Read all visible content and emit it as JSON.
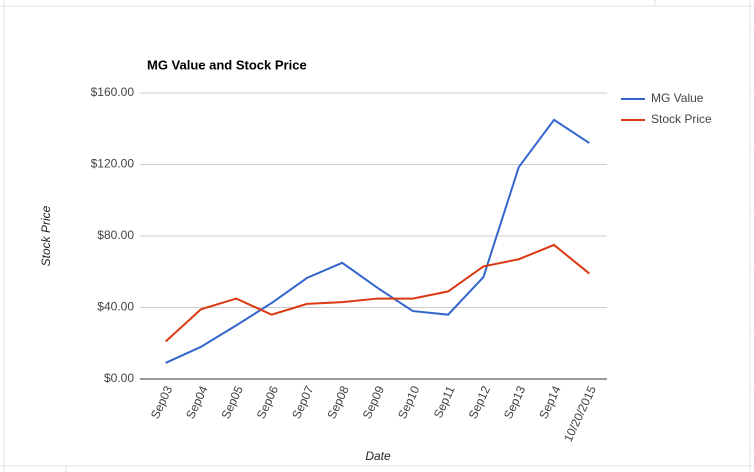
{
  "chart_data": {
    "type": "line",
    "title": "MG Value and Stock Price",
    "x_label": "Date",
    "y_label": "Stock Price",
    "categories": [
      "Sep03",
      "Sep04",
      "Sep05",
      "Sep06",
      "Sep07",
      "Sep08",
      "Sep09",
      "Sep10",
      "Sep11",
      "Sep12",
      "Sep13",
      "Sep14",
      "10/20/2015"
    ],
    "series": [
      {
        "name": "MG Value",
        "color": "#3366cc",
        "values": [
          9,
          18,
          30,
          42.5,
          56.5,
          65,
          51,
          38,
          36,
          57,
          118.5,
          145,
          132
        ]
      },
      {
        "name": "Stock Price",
        "color": "#dc3912",
        "values": [
          21,
          39,
          45,
          36,
          42,
          43,
          45,
          45,
          49,
          63,
          67,
          75,
          59
        ]
      }
    ],
    "ylim": [
      0,
      160
    ],
    "yticks": [
      {
        "value": 0,
        "label": "$0.00"
      },
      {
        "value": 40,
        "label": "$40.00"
      },
      {
        "value": 80,
        "label": "$80.00"
      },
      {
        "value": 120,
        "label": "$120.00"
      },
      {
        "value": 160,
        "label": "$160.00"
      }
    ],
    "grid": true,
    "legend": "right"
  }
}
